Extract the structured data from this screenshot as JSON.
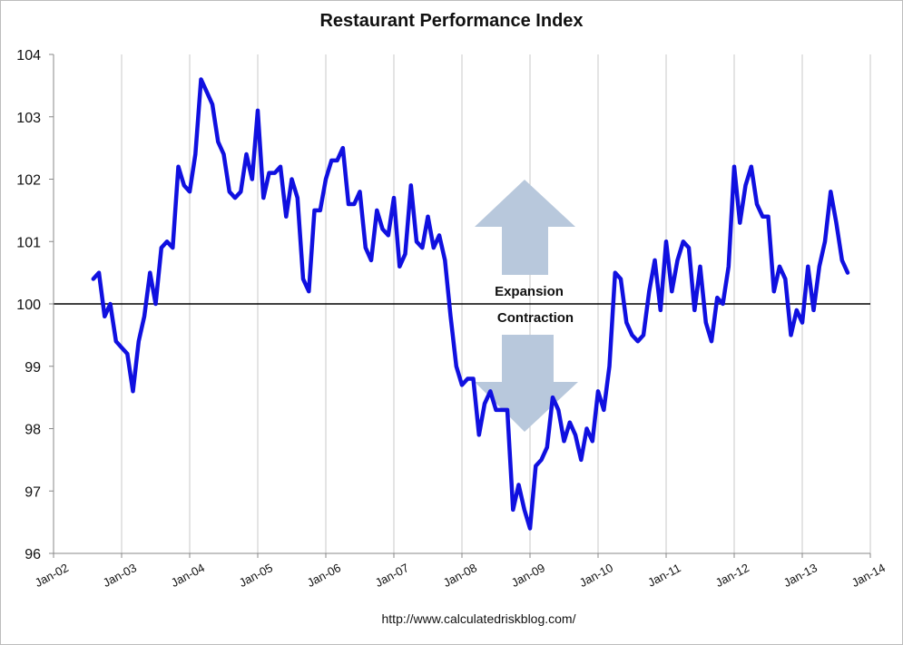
{
  "chart_data": {
    "type": "line",
    "title": "Restaurant Performance Index",
    "source": "http://www.calculatedriskblog.com/",
    "xlabel": "",
    "ylabel": "",
    "ylim": [
      96,
      104
    ],
    "yticks": [
      "96",
      "97",
      "98",
      "99",
      "100",
      "101",
      "102",
      "103",
      "104"
    ],
    "xticks": [
      "Jan-02",
      "Jan-03",
      "Jan-04",
      "Jan-05",
      "Jan-06",
      "Jan-07",
      "Jan-08",
      "Jan-09",
      "Jan-10",
      "Jan-11",
      "Jan-12",
      "Jan-13",
      "Jan-14"
    ],
    "grid": "vertical",
    "reference_line": 100,
    "annotations": {
      "expansion": "Expansion",
      "contraction": "Contraction"
    },
    "colors": {
      "line": "#1010e0",
      "arrow": "#b8c8dc",
      "grid": "#c8c8c8",
      "reference": "#000000"
    },
    "series": [
      {
        "start": "2002-08",
        "values": [
          100.4,
          100.5,
          99.8,
          100.0,
          99.4,
          99.3,
          99.2,
          98.6,
          99.4,
          99.8,
          100.5,
          100.0,
          100.9,
          101.0,
          100.9,
          102.2,
          101.9,
          101.8,
          102.4,
          103.6,
          103.4,
          103.2,
          102.6,
          102.4,
          101.8,
          101.7,
          101.8,
          102.4,
          102.0,
          103.1,
          101.7,
          102.1,
          102.1,
          102.2,
          101.4,
          102.0,
          101.7,
          100.4,
          100.2,
          101.5,
          101.5,
          102.0,
          102.3,
          102.3,
          102.5,
          101.6,
          101.6,
          101.8,
          100.9,
          100.7,
          101.5,
          101.2,
          101.1,
          101.7,
          100.6,
          100.8,
          101.9,
          101.0,
          100.9,
          101.4,
          100.9,
          101.1,
          100.7,
          99.8,
          99.0,
          98.7,
          98.8,
          98.8,
          97.9,
          98.4,
          98.6,
          98.3,
          98.3,
          98.3,
          96.7,
          97.1,
          96.7,
          96.4,
          97.4,
          97.5,
          97.7,
          98.5,
          98.3,
          97.8,
          98.1,
          97.9,
          97.5,
          98.0,
          97.8,
          98.6,
          98.3,
          99.0,
          100.5,
          100.4,
          99.7,
          99.5,
          99.4,
          99.5,
          100.2,
          100.7,
          99.9,
          101.0,
          100.2,
          100.7,
          101.0,
          100.9,
          99.9,
          100.6,
          99.7,
          99.4,
          100.1,
          100.0,
          100.6,
          102.2,
          101.3,
          101.9,
          102.2,
          101.6,
          101.4,
          101.4,
          100.2,
          100.6,
          100.4,
          99.5,
          99.9,
          99.7,
          100.6,
          99.9,
          100.6,
          101.0,
          101.8,
          101.3,
          100.7,
          100.5
        ]
      }
    ]
  }
}
